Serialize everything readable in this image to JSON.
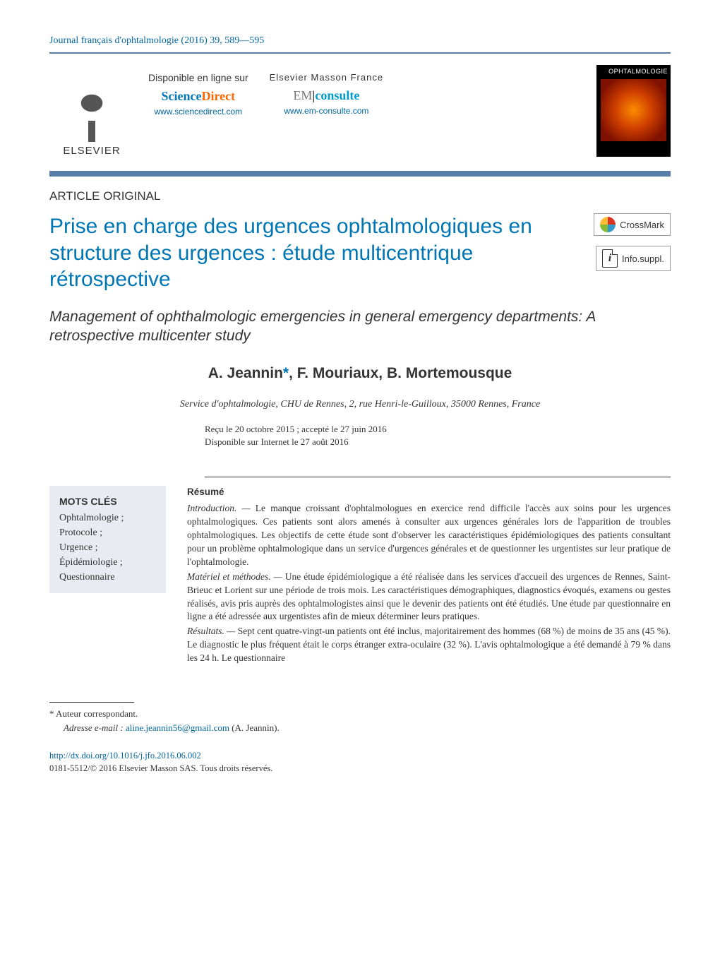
{
  "journal": {
    "name": "Journal français d'ophtalmologie",
    "year": "2016",
    "volume": "39",
    "page_range": "589—595",
    "header_line": "Journal français d'ophtalmologie (2016) 39, 589—595"
  },
  "publisher_bar": {
    "elsevier_label": "ELSEVIER",
    "col1": {
      "available": "Disponible en ligne sur",
      "brand1": "Science",
      "brand2": "Direct",
      "url": "www.sciencedirect.com"
    },
    "col2": {
      "available": "Elsevier Masson France",
      "brand1": "EM",
      "brand2": "consulte",
      "url": "www.em-consulte.com"
    },
    "cover": {
      "title": "OPHTALMOLOGIE"
    }
  },
  "article": {
    "type": "ARTICLE ORIGINAL",
    "title_fr": "Prise en charge des urgences ophtalmologiques en structure des urgences : étude multicentrique rétrospective",
    "title_en": "Management of ophthalmologic emergencies in general emergency departments: A retrospective multicenter study",
    "authors_line": "A. Jeannin*, F. Mouriaux, B. Mortemousque",
    "authors": [
      {
        "name": "A. Jeannin",
        "corresponding": true
      },
      {
        "name": "F. Mouriaux"
      },
      {
        "name": "B. Mortemousque"
      }
    ],
    "affiliation": "Service d'ophtalmologie, CHU de Rennes, 2, rue Henri-le-Guilloux, 35000 Rennes, France",
    "received": "Reçu le 20 octobre 2015",
    "accepted": "accepté le 27 juin 2016",
    "online": "Disponible sur Internet le 27 août 2016",
    "dates_line1": "Reçu le 20 octobre 2015  ; accepté le 27 juin 2016",
    "dates_line2": "Disponible sur Internet le 27 août 2016"
  },
  "badges": {
    "crossmark": "CrossMark",
    "infosuppl": "Info.suppl."
  },
  "keywords": {
    "title": "MOTS CLÉS",
    "items": [
      "Ophtalmologie ;",
      "Protocole ;",
      "Urgence ;",
      "Épidémiologie ;",
      "Questionnaire"
    ]
  },
  "abstract": {
    "title": "Résumé",
    "sections": [
      {
        "lead": "Introduction. —",
        "text": " Le manque croissant d'ophtalmologues en exercice rend difficile l'accès aux soins pour les urgences ophtalmologiques. Ces patients sont alors amenés à consulter aux urgences générales lors de l'apparition de troubles ophtalmologiques. Les objectifs de cette étude sont d'observer les caractéristiques épidémiologiques des patients consultant pour un problème ophtalmologique dans un service d'urgences générales et de questionner les urgentistes sur leur pratique de l'ophtalmologie."
      },
      {
        "lead": "Matériel et méthodes. —",
        "text": " Une étude épidémiologique a été réalisée dans les services d'accueil des urgences de Rennes, Saint-Brieuc et Lorient sur une période de trois mois. Les caractéristiques démographiques, diagnostics évoqués, examens ou gestes réalisés, avis pris auprès des ophtalmologistes ainsi que le devenir des patients ont été étudiés. Une étude par questionnaire en ligne a été adressée aux urgentistes afin de mieux déterminer leurs pratiques."
      },
      {
        "lead": "Résultats. —",
        "text": " Sept cent quatre-vingt-un patients ont été inclus, majoritairement des hommes (68 %) de moins de 35 ans (45 %). Le diagnostic le plus fréquent était le corps étranger extra-oculaire (32 %). L'avis ophtalmologique a été demandé à 79 % dans les 24 h. Le questionnaire"
      }
    ]
  },
  "footnote": {
    "mark": "*",
    "corresponding_label": "Auteur correspondant.",
    "email_label": "Adresse e-mail :",
    "email": "aline.jeannin56@gmail.com",
    "email_author": "(A. Jeannin)."
  },
  "footer": {
    "doi": "http://dx.doi.org/10.1016/j.jfo.2016.06.002",
    "issn_copyright": "0181-5512/© 2016 Elsevier Masson SAS. Tous droits réservés."
  },
  "colors": {
    "link": "#0066a1",
    "title": "#0076b4",
    "header_rule": "#5b7ea8",
    "kw_bg": "#e8ecf2",
    "sd_orange": "#ff6600",
    "em_teal": "#0099cc"
  }
}
